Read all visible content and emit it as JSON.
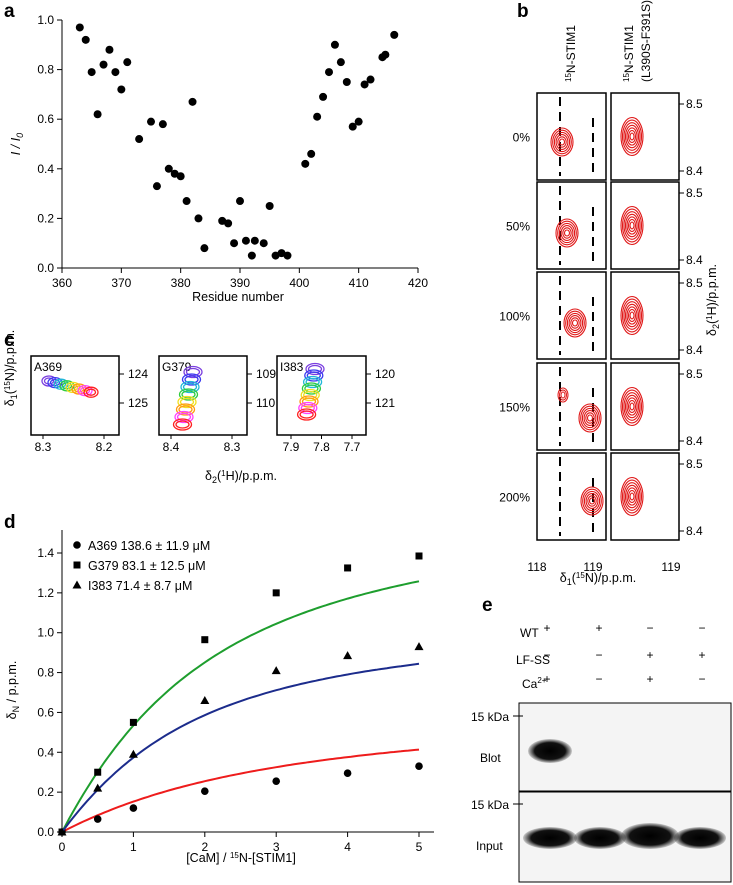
{
  "panel_labels": {
    "a": "a",
    "b": "b",
    "c": "c",
    "d": "d",
    "e": "e"
  },
  "chart_data": [
    {
      "id": "a",
      "type": "scatter",
      "xlabel": "Residue number",
      "ylabel": "I / I",
      "ylabel_sub": "0",
      "xlim": [
        360,
        420
      ],
      "ylim": [
        0,
        1.0
      ],
      "xticks": [
        "360",
        "370",
        "380",
        "390",
        "400",
        "410",
        "420"
      ],
      "yticks": [
        "0.0",
        "0.2",
        "0.4",
        "0.6",
        "0.8",
        "1.0"
      ],
      "points": [
        [
          363,
          0.97
        ],
        [
          364,
          0.92
        ],
        [
          365,
          0.79
        ],
        [
          366,
          0.62
        ],
        [
          367,
          0.82
        ],
        [
          368,
          0.88
        ],
        [
          369,
          0.79
        ],
        [
          370,
          0.72
        ],
        [
          371,
          0.83
        ],
        [
          373,
          0.52
        ],
        [
          375,
          0.59
        ],
        [
          376,
          0.33
        ],
        [
          377,
          0.58
        ],
        [
          378,
          0.4
        ],
        [
          379,
          0.38
        ],
        [
          380,
          0.37
        ],
        [
          381,
          0.27
        ],
        [
          382,
          0.67
        ],
        [
          383,
          0.2
        ],
        [
          384,
          0.08
        ],
        [
          387,
          0.19
        ],
        [
          388,
          0.18
        ],
        [
          389,
          0.1
        ],
        [
          390,
          0.27
        ],
        [
          391,
          0.11
        ],
        [
          392,
          0.05
        ],
        [
          392.5,
          0.11
        ],
        [
          394,
          0.1
        ],
        [
          395,
          0.25
        ],
        [
          396,
          0.05
        ],
        [
          397,
          0.06
        ],
        [
          398,
          0.05
        ],
        [
          401,
          0.42
        ],
        [
          402,
          0.46
        ],
        [
          403,
          0.61
        ],
        [
          404,
          0.69
        ],
        [
          405,
          0.79
        ],
        [
          406,
          0.9
        ],
        [
          407,
          0.83
        ],
        [
          408,
          0.75
        ],
        [
          409,
          0.57
        ],
        [
          410,
          0.59
        ],
        [
          411,
          0.74
        ],
        [
          412,
          0.76
        ],
        [
          414,
          0.85
        ],
        [
          414.5,
          0.86
        ],
        [
          416,
          0.94
        ]
      ]
    },
    {
      "id": "b",
      "type": "nmr-spectra-grid",
      "columns": [
        "15N-STIM1",
        "15N-STIM1",
        "(L390S-F391S)"
      ],
      "column_sup": "15",
      "column_main": "N-STIM1",
      "column_sub2": "(L390S-F391S)",
      "rows": [
        "0%",
        "50%",
        "100%",
        "150%",
        "200%"
      ],
      "yticks": [
        "8.5",
        "8.4"
      ],
      "xticks": [
        "118",
        "119",
        "119"
      ],
      "xlabel": "δ1(15N)/p.p.m.",
      "ylabel": "δ2(1H)/p.p.m."
    },
    {
      "id": "c",
      "type": "nmr-titration-panels",
      "panels": [
        {
          "label": "A369",
          "xticks": [
            "8.3",
            "8.2"
          ],
          "yticks": [
            "124",
            "125"
          ]
        },
        {
          "label": "G379",
          "xticks": [
            "8.4",
            "8.3"
          ],
          "yticks": [
            "109",
            "110"
          ]
        },
        {
          "label": "I383",
          "xticks": [
            "7.9",
            "7.8",
            "7.7"
          ],
          "yticks": [
            "120",
            "121"
          ]
        }
      ],
      "xlabel": "δ2(1H)/p.p.m.",
      "ylabel": "δ1(15N)/p.p.m."
    },
    {
      "id": "d",
      "type": "line",
      "xlabel": "[CaM] / 15N-[STIM1]",
      "ylabel": "δN / p.p.m.",
      "xlim": [
        0,
        5
      ],
      "ylim": [
        0,
        1.4
      ],
      "xticks": [
        "0",
        "1",
        "2",
        "3",
        "4",
        "5"
      ],
      "yticks": [
        "0.0",
        "0.2",
        "0.4",
        "0.6",
        "0.8",
        "1.0",
        "1.2",
        "1.4"
      ],
      "series": [
        {
          "name": "A369 138.6 ± 11.9 μM",
          "color": "#ee1c1c",
          "marker": "circle",
          "x": [
            0,
            0.5,
            1,
            2,
            3,
            4,
            5
          ],
          "y": [
            0.0,
            0.065,
            0.12,
            0.205,
            0.255,
            0.295,
            0.33
          ],
          "Kd": 138.6,
          "Bmax": 0.65
        },
        {
          "name": "G379 83.1 ± 12.5 μM",
          "color": "#1e9e2e",
          "marker": "square",
          "x": [
            0,
            0.5,
            1,
            2,
            3,
            4,
            5
          ],
          "y": [
            0.0,
            0.3,
            0.55,
            0.965,
            1.2,
            1.325,
            1.385
          ],
          "Kd": 83.1,
          "Bmax": 1.7
        },
        {
          "name": "I383 71.4 ± 8.7 μM",
          "color": "#1c2c8c",
          "marker": "triangle",
          "x": [
            0,
            0.5,
            1,
            2,
            3,
            4,
            5
          ],
          "y": [
            0.0,
            0.22,
            0.39,
            0.66,
            0.81,
            0.885,
            0.93
          ],
          "Kd": 71.4,
          "Bmax": 1.1
        }
      ]
    },
    {
      "id": "e",
      "type": "western-blot",
      "rows": [
        {
          "label": "WT",
          "values": [
            "+",
            "+",
            "−",
            "−"
          ]
        },
        {
          "label": "LF-SS",
          "values": [
            "−",
            "−",
            "+",
            "+"
          ]
        },
        {
          "label": "Ca2+",
          "values": [
            "+",
            "−",
            "+",
            "−"
          ]
        }
      ],
      "ca_label": "Ca",
      "ca_sup": "2+",
      "marker": "15 kDa",
      "blot_label": "Blot",
      "input_label": "Input"
    }
  ]
}
